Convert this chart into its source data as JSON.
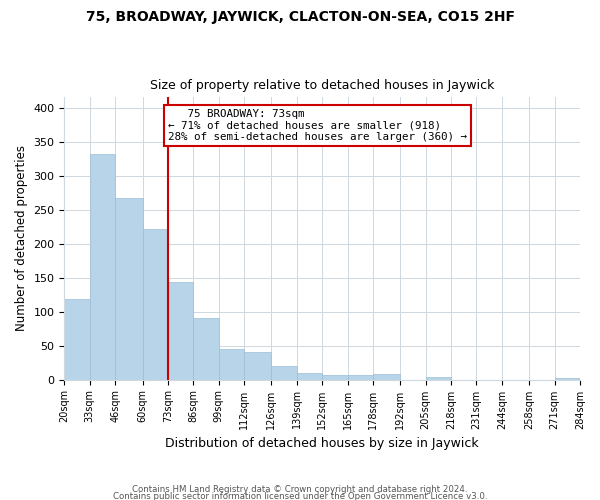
{
  "title1": "75, BROADWAY, JAYWICK, CLACTON-ON-SEA, CO15 2HF",
  "title2": "Size of property relative to detached houses in Jaywick",
  "xlabel": "Distribution of detached houses by size in Jaywick",
  "ylabel": "Number of detached properties",
  "bins": [
    20,
    33,
    46,
    60,
    73,
    86,
    99,
    112,
    126,
    139,
    152,
    165,
    178,
    192,
    205,
    218,
    231,
    244,
    258,
    271,
    284
  ],
  "counts": [
    118,
    332,
    267,
    222,
    143,
    90,
    45,
    41,
    20,
    10,
    7,
    6,
    8,
    0,
    4,
    0,
    0,
    0,
    0,
    3
  ],
  "bar_color": "#b8d4e8",
  "bar_edge_color": "#9bbdd6",
  "vline_x": 73,
  "vline_color": "#cc0000",
  "annotation_title": "75 BROADWAY: 73sqm",
  "annotation_line1": "← 71% of detached houses are smaller (918)",
  "annotation_line2": "28% of semi-detached houses are larger (360) →",
  "annotation_box_color": "white",
  "annotation_box_edge": "#cc0000",
  "tick_labels": [
    "20sqm",
    "33sqm",
    "46sqm",
    "60sqm",
    "73sqm",
    "86sqm",
    "99sqm",
    "112sqm",
    "126sqm",
    "139sqm",
    "152sqm",
    "165sqm",
    "178sqm",
    "192sqm",
    "205sqm",
    "218sqm",
    "231sqm",
    "244sqm",
    "258sqm",
    "271sqm",
    "284sqm"
  ],
  "yticks": [
    0,
    50,
    100,
    150,
    200,
    250,
    300,
    350,
    400
  ],
  "ylim": [
    0,
    415
  ],
  "footer1": "Contains HM Land Registry data © Crown copyright and database right 2024.",
  "footer2": "Contains public sector information licensed under the Open Government Licence v3.0.",
  "background_color": "#ffffff",
  "grid_color": "#d0d8e0"
}
